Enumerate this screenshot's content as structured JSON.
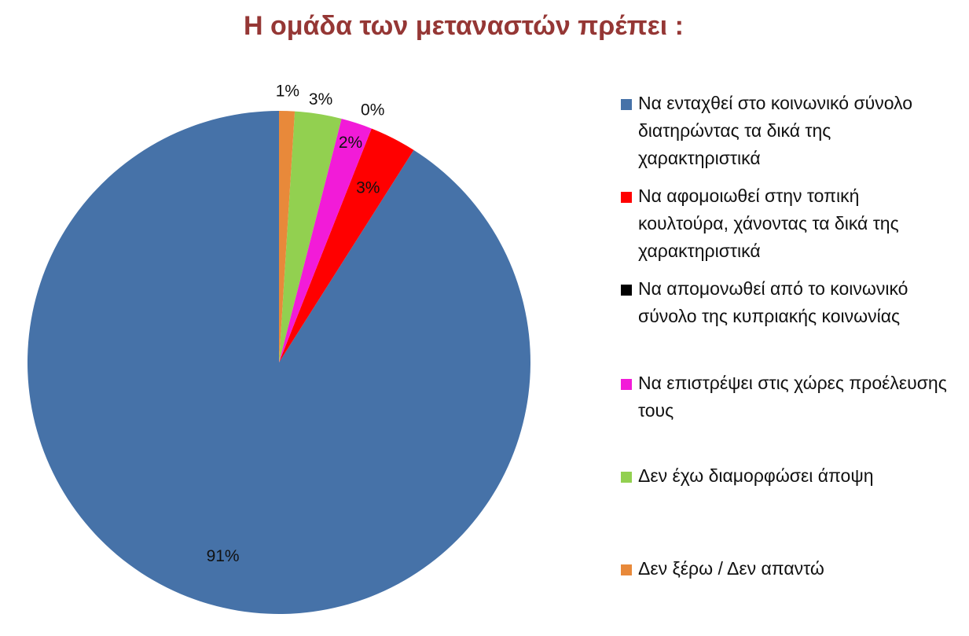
{
  "chart_data": {
    "type": "pie",
    "title": "Η ομάδα των μεταναστών πρέπει :",
    "categories": [
      "Να ενταχθεί στο κοινωνικό σύνολο διατηρώντας τα δικά της χαρακτηριστικά",
      "Να αφομοιωθεί στην τοπική κουλτούρα, χάνοντας τα δικά της χαρακτηριστικά",
      "Να απομονωθεί από το κοινωνικό σύνολο της κυπριακής κοινωνίας",
      "Να επιστρέψει στις χώρες προέλευσης τους",
      "Δεν έχω διαμορφώσει άποψη",
      "Δεν ξέρω / Δεν απαντώ"
    ],
    "values": [
      91,
      3,
      0,
      2,
      3,
      1
    ],
    "labels": [
      "91%",
      "3%",
      "0%",
      "2%",
      "3%",
      "1%"
    ],
    "colors": [
      "#4672A8",
      "#FF0000",
      "#000000",
      "#F21BD8",
      "#92D050",
      "#E8893A"
    ],
    "legend_position": "right",
    "start": "top",
    "direction": "counterclockwise"
  }
}
